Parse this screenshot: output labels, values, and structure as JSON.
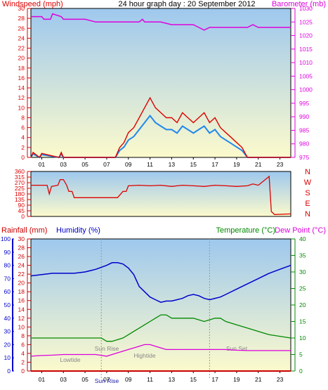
{
  "title": "24 hour graph day : 20 September 2012",
  "colors": {
    "wind": "#dd0000",
    "gust": "#ff0000",
    "avgwind": "#2288ee",
    "baro": "#dd00dd",
    "dir": "#dd0000",
    "rain": "#cc0000",
    "hum": "#0000cc",
    "temp": "#008800",
    "dew": "#dd00dd",
    "frame": "#000000",
    "skyTop": "#9ec8ee",
    "skyBottom": "#fcfacc"
  },
  "chart_data": [
    {
      "type": "line",
      "title": "24 hour graph day : 20 September 2012",
      "ylabel_left": "Windspeed (mph)",
      "ylabel_right": "Barometer (mb)",
      "x_ticks": [
        "01",
        "03",
        "05",
        "07",
        "09",
        "11",
        "13",
        "15",
        "17",
        "19",
        "21",
        "23"
      ],
      "ylim_left": [
        0,
        30
      ],
      "ylim_right": [
        975,
        1030
      ],
      "yticks_left": [
        0,
        2,
        4,
        6,
        8,
        10,
        12,
        14,
        16,
        18,
        20,
        22,
        24,
        26,
        28,
        30
      ],
      "yticks_right": [
        975,
        980,
        985,
        990,
        995,
        1000,
        1005,
        1010,
        1015,
        1020,
        1025,
        1030
      ],
      "series": [
        {
          "name": "Windspeed (mph)",
          "axis": "left",
          "x": [
            0,
            0.2,
            0.8,
            1.0,
            2.6,
            2.8,
            3.0,
            7.8,
            8.2,
            8.6,
            9.0,
            9.5,
            10.0,
            10.5,
            11.0,
            11.5,
            12.0,
            12.5,
            13.0,
            13.5,
            14.0,
            14.5,
            15.0,
            15.5,
            16.0,
            16.5,
            17.0,
            17.5,
            18.0,
            18.5,
            19.0,
            19.5,
            20.0,
            24
          ],
          "y": [
            0,
            1.0,
            0,
            0.8,
            0,
            1.0,
            0,
            0,
            2,
            3,
            5,
            6,
            8,
            10,
            12,
            10,
            9,
            8,
            8,
            7,
            9,
            8,
            7,
            8,
            9,
            7,
            8,
            6,
            5,
            4,
            3,
            2,
            0,
            0
          ]
        },
        {
          "name": "Barometer (mb)",
          "axis": "right",
          "x": [
            0,
            1.0,
            1.2,
            1.8,
            2.0,
            2.8,
            3.0,
            5.0,
            6.0,
            6.2,
            8.0,
            8.5,
            10.0,
            10.3,
            10.5,
            11.0,
            12.0,
            13.0,
            14.0,
            15.0,
            15.5,
            16.0,
            16.5,
            17.0,
            17.5,
            18.0,
            19.0,
            20.0,
            20.5,
            21.0,
            22.0,
            24
          ],
          "y": [
            1027,
            1027,
            1026,
            1026,
            1028,
            1027,
            1026,
            1026,
            1025,
            1025,
            1025,
            1025,
            1025,
            1026,
            1025,
            1025,
            1025,
            1024,
            1024,
            1024,
            1023,
            1022,
            1023,
            1023,
            1023,
            1023,
            1023,
            1023,
            1024,
            1023,
            1023,
            1023
          ]
        }
      ]
    },
    {
      "type": "line",
      "ylabel_left": "",
      "yticks_left": [
        0,
        45,
        90,
        135,
        180,
        225,
        270,
        315,
        360
      ],
      "compass": [
        "N",
        "W",
        "S",
        "E",
        "N"
      ],
      "ylim_left": [
        0,
        360
      ],
      "series": [
        {
          "name": "Wind direction",
          "x": [
            0,
            1.5,
            1.7,
            1.9,
            2.5,
            2.7,
            3.0,
            3.3,
            3.5,
            3.8,
            4.0,
            5.0,
            7.5,
            8.0,
            8.5,
            8.8,
            9.0,
            10,
            11,
            12,
            13,
            14,
            15,
            16,
            17,
            18,
            19,
            20,
            20.5,
            21.0,
            22.0,
            22.2,
            22.5,
            24
          ],
          "y": [
            250,
            250,
            180,
            240,
            250,
            295,
            295,
            250,
            200,
            200,
            150,
            150,
            150,
            150,
            200,
            200,
            245,
            250,
            245,
            250,
            240,
            250,
            245,
            240,
            250,
            245,
            240,
            245,
            260,
            250,
            320,
            40,
            15,
            20
          ]
        }
      ]
    },
    {
      "type": "line",
      "ylabel_left": "Rainfall (mm)",
      "ylabel_left2": "Humidity (%)",
      "ylabel_right": "Temperature (°C)",
      "ylabel_right2": "Dew Point (°C)",
      "x_ticks": [
        "01",
        "03",
        "05",
        "07",
        "09",
        "11",
        "13",
        "15",
        "17",
        "19",
        "21",
        "23"
      ],
      "ylim_rain": [
        0,
        30
      ],
      "ylim_hum": [
        0,
        100
      ],
      "ylim_temp": [
        0,
        40
      ],
      "yticks_rain": [
        0,
        2,
        4,
        6,
        8,
        10,
        12,
        14,
        16,
        18,
        20,
        22,
        24,
        26,
        28,
        30
      ],
      "yticks_hum": [
        0,
        10,
        20,
        30,
        40,
        50,
        60,
        70,
        80,
        90,
        100
      ],
      "yticks_temp": [
        0,
        5,
        10,
        15,
        20,
        25,
        30,
        35,
        40
      ],
      "annotations": [
        "Lowtide",
        "Sun Rise",
        "Hightide",
        "Sun Set",
        "Sun Rise"
      ],
      "series": [
        {
          "name": "Humidity (%)",
          "axis": "hum",
          "x": [
            0,
            1,
            2,
            3,
            4,
            5,
            6,
            7,
            7.5,
            8,
            8.5,
            9,
            9.5,
            10,
            10.5,
            11,
            11.5,
            12,
            12.5,
            13,
            13.5,
            14,
            14.5,
            15,
            15.5,
            16,
            16.5,
            17,
            17.5,
            18,
            19,
            20,
            21,
            22,
            23,
            24
          ],
          "y": [
            72,
            73,
            74,
            74,
            74,
            75,
            77,
            80,
            82,
            82,
            81,
            78,
            73,
            64,
            60,
            56,
            54,
            52,
            53,
            53,
            54,
            55,
            57,
            58,
            57,
            55,
            54,
            55,
            56,
            58,
            62,
            66,
            70,
            74,
            77,
            80
          ]
        },
        {
          "name": "Temperature (°C)",
          "axis": "temp",
          "x": [
            0,
            1,
            2,
            3,
            4,
            5,
            6,
            6.5,
            7,
            7.5,
            8,
            8.5,
            9,
            9.5,
            10,
            10.5,
            11,
            11.5,
            12,
            12.5,
            13,
            13.5,
            14,
            14.5,
            15,
            15.5,
            16,
            16.5,
            17,
            17.5,
            18,
            19,
            20,
            21,
            22,
            23,
            24
          ],
          "y": [
            10,
            10,
            10,
            10,
            10,
            10,
            10,
            10,
            9,
            9,
            9.5,
            10,
            11,
            12,
            13,
            14,
            15,
            16,
            17,
            17,
            16,
            16,
            16,
            16,
            16,
            15.5,
            15,
            15.5,
            16,
            16,
            15,
            14,
            13,
            12,
            11,
            10.5,
            10
          ]
        },
        {
          "name": "Dew Point (°C)",
          "axis": "temp",
          "x": [
            0,
            1,
            2,
            3,
            4,
            5,
            6,
            7,
            7.5,
            8,
            8.5,
            9,
            9.5,
            10,
            10.5,
            11,
            11.5,
            12,
            12.5,
            13,
            14,
            15,
            16,
            17,
            18,
            19,
            20,
            21,
            22,
            23,
            24
          ],
          "y": [
            4.5,
            4.7,
            4.8,
            5,
            5,
            5,
            5,
            4.5,
            5,
            5.5,
            6,
            6.5,
            7,
            7.5,
            8,
            8,
            7.5,
            7,
            6.5,
            6.5,
            6.5,
            6.5,
            6.5,
            6.5,
            6.5,
            6.3,
            6.2,
            6.2,
            6.2,
            6.2,
            6.2
          ]
        },
        {
          "name": "Rainfall (mm)",
          "axis": "rain",
          "x": [
            0,
            24
          ],
          "y": [
            0,
            0
          ]
        }
      ]
    }
  ]
}
